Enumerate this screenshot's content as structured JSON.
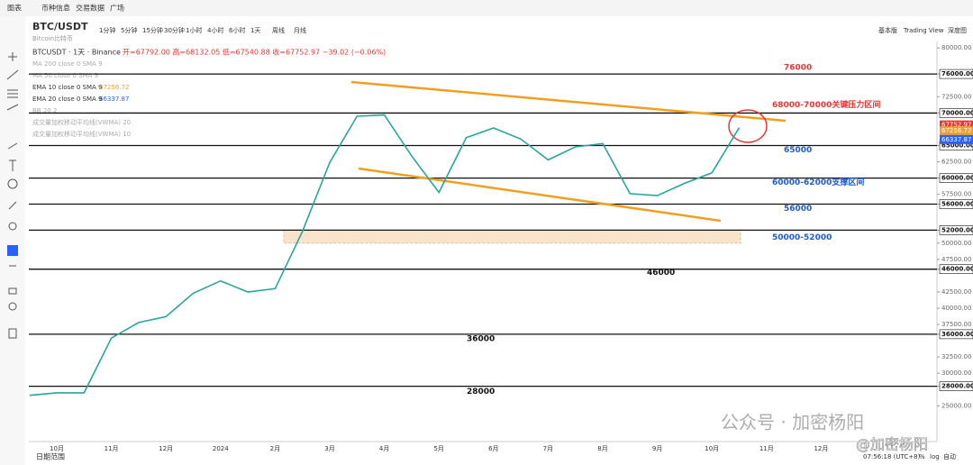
{
  "nav": [
    "图表",
    "币种信息",
    "交易数据",
    "广场"
  ],
  "toolbar": {
    "intervals": [
      "1分钟",
      "5分钟",
      "15分钟",
      "30分钟",
      "1小时",
      "4小时",
      "6小时",
      "1天",
      "周线",
      "月线"
    ],
    "right": [
      "基本版",
      "Trading View",
      "深度图"
    ]
  },
  "legend": {
    "symbol": "BTCUSDT · 1天 · Binance",
    "ohlc": "开=67792.00 高=68132.05 低=67540.88 收=67752.97 −39.02 (−0.06%)",
    "indicators": [
      {
        "text": "MA 200 close 0 SMA 9"
      },
      {
        "text": "MA 50 close 0 SMA 9"
      },
      {
        "text": "EMA 10 close 0 SMA 9",
        "value": 67256.72,
        "color": "#f0a030"
      },
      {
        "text": "EMA 20 close 0 SMA 9",
        "value": 66337.87,
        "color": "#2962ff"
      },
      {
        "text": "BB 20 2"
      },
      {
        "text": "成交量加权移动平均线(VWMA) 20"
      },
      {
        "text": "成交量加权移动平均线(VWMA) 10"
      }
    ],
    "last": {
      "value": 67752.97,
      "color": "#e53935"
    }
  },
  "footer": {
    "range": "日期范围",
    "time": "07:56:18 (UTC+8)",
    "pct": "%",
    "log": "log",
    "auto": "自动"
  },
  "watermark": [
    "公众号 · 加密杨阳",
    "@加密杨阳"
  ],
  "chart_data": {
    "type": "line",
    "title": "BTC/USDT",
    "subtitle": "Bitcoin比特币",
    "categories": [
      null,
      "10月",
      null,
      "11月",
      null,
      "12月",
      null,
      "2024",
      null,
      "2月",
      null,
      "3月",
      null,
      "4月",
      null,
      "5月",
      null,
      "6月",
      null,
      "7月",
      null,
      "8月",
      null,
      "9月",
      null,
      "10月",
      null,
      "11月",
      null,
      "12月"
    ],
    "series": [
      {
        "name": "BTCUSDT",
        "color": "#26a69a",
        "values": [
          26600,
          27000,
          27000,
          35400,
          37800,
          38700,
          42300,
          44200,
          42500,
          43000,
          51800,
          62400,
          69500,
          69700,
          63400,
          57800,
          66200,
          67700,
          66000,
          62800,
          64800,
          65300,
          57600,
          57300,
          59200,
          60800,
          67750,
          null,
          null,
          null
        ]
      }
    ],
    "ylim": [
      19500,
      81000
    ],
    "yticks": [
      {
        "value": 80000,
        "label": "80000.00"
      },
      {
        "value": 76000,
        "label": "76000.00"
      },
      {
        "value": 72500,
        "label": "72500.00"
      },
      {
        "value": 70000,
        "label": "70000.00"
      },
      {
        "value": 65000,
        "label": "65000.00"
      },
      {
        "value": 62500,
        "label": "62500.00"
      },
      {
        "value": 60000,
        "label": "60000.00"
      },
      {
        "value": 57500,
        "label": "57500.00"
      },
      {
        "value": 56000,
        "label": "56000.00"
      },
      {
        "value": 52000,
        "label": "52000.00"
      },
      {
        "value": 50000,
        "label": "50000.00"
      },
      {
        "value": 47500,
        "label": "47500.00"
      },
      {
        "value": 46000,
        "label": "46000.00"
      },
      {
        "value": 42500,
        "label": "42500.00"
      },
      {
        "value": 40000,
        "label": "40000.00"
      },
      {
        "value": 37500,
        "label": "37500.00"
      },
      {
        "value": 36000,
        "label": "36000.00"
      },
      {
        "value": 32500,
        "label": "32500.00"
      },
      {
        "value": 30000,
        "label": "30000.00"
      },
      {
        "value": 28000,
        "label": "28000.00"
      },
      {
        "value": 25000,
        "label": "25000.00"
      }
    ],
    "levels": [
      76000,
      70000,
      65000,
      60000,
      56000,
      52000,
      46000,
      36000,
      28000
    ],
    "support_zone": [
      50000,
      52000
    ],
    "annotations": [
      {
        "text": "76000",
        "color": "#e53935"
      },
      {
        "text": "68000-70000关键压力区间",
        "color": "#e53935"
      },
      {
        "text": "65000",
        "color": "#1e5bd6"
      },
      {
        "text": "60000-62000支撑区间",
        "color": "#1e5bd6"
      },
      {
        "text": "56000",
        "color": "#1e5bd6"
      },
      {
        "text": "50000-52000",
        "color": "#1e5bd6"
      },
      {
        "text": "46000",
        "color": "#111"
      },
      {
        "text": "36000",
        "color": "#111"
      },
      {
        "text": "28000",
        "color": "#111"
      }
    ]
  }
}
